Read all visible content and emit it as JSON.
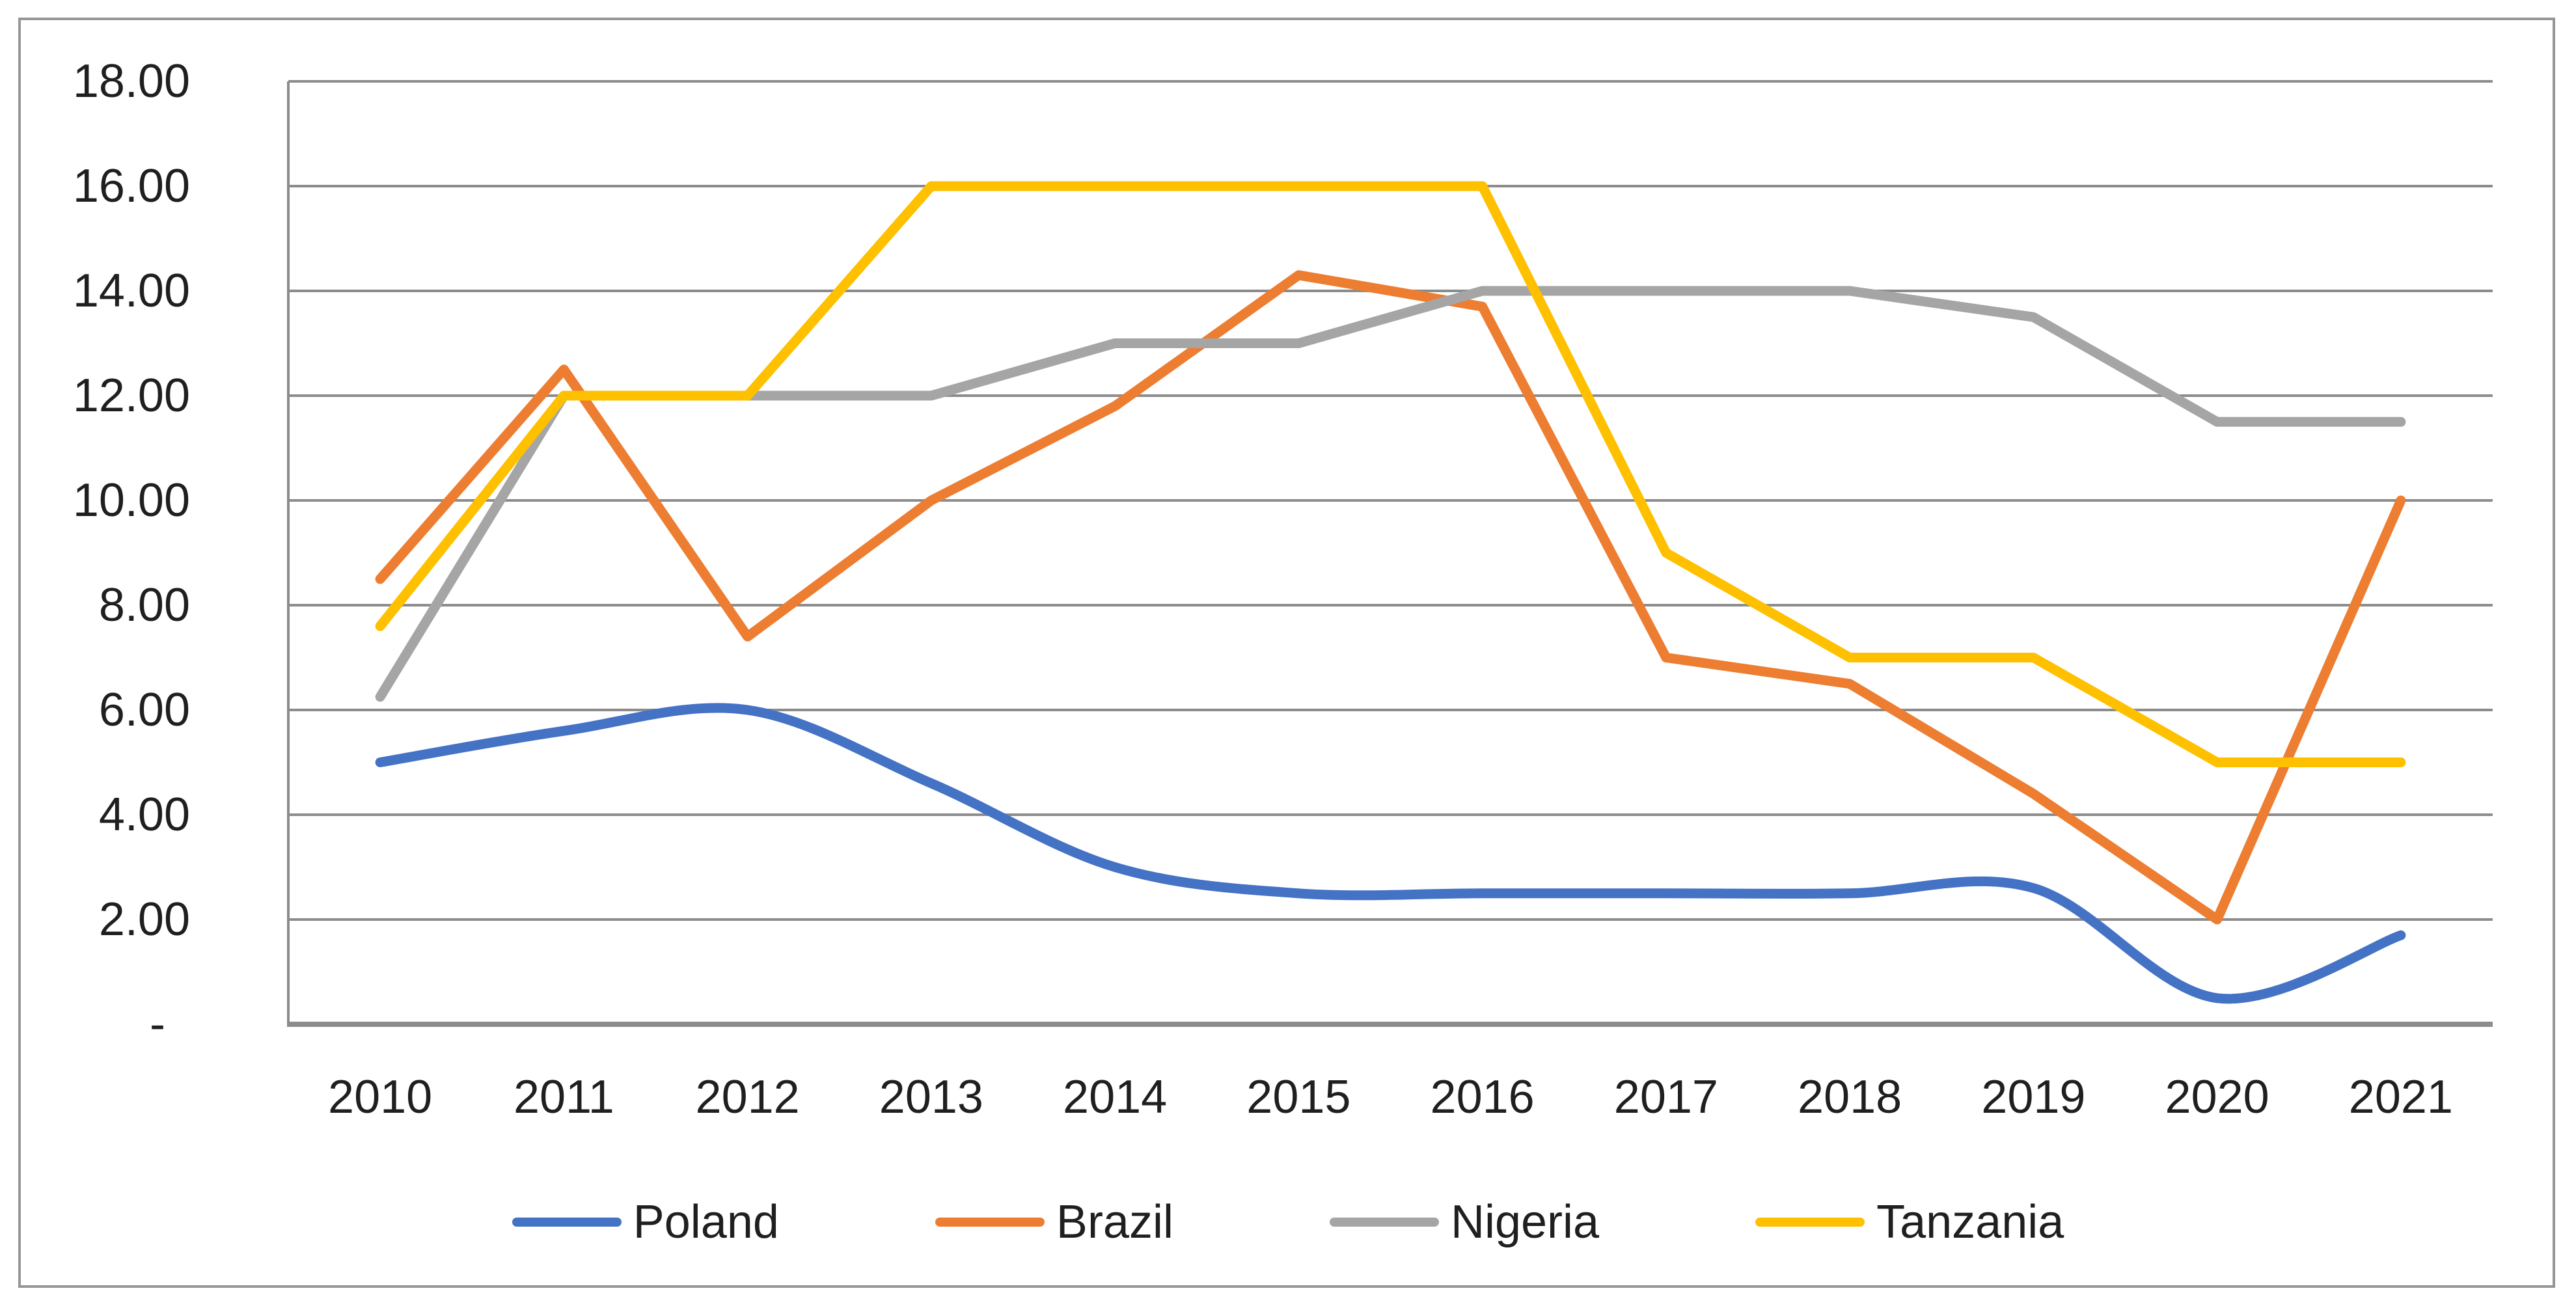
{
  "chart_data": {
    "type": "line",
    "title": "",
    "categories": [
      "2010",
      "2011",
      "2012",
      "2013",
      "2014",
      "2015",
      "2016",
      "2017",
      "2018",
      "2019",
      "2020",
      "2021"
    ],
    "series": [
      {
        "name": "Poland",
        "color": "#4472C4",
        "smooth": true,
        "values": [
          5.0,
          5.6,
          6.0,
          4.6,
          3.0,
          2.5,
          2.5,
          2.5,
          2.5,
          2.6,
          0.5,
          1.7
        ]
      },
      {
        "name": "Brazil",
        "color": "#ED7D31",
        "smooth": false,
        "values": [
          8.5,
          12.5,
          7.4,
          10.0,
          11.8,
          14.3,
          13.7,
          7.0,
          6.5,
          4.4,
          2.0,
          10.0
        ]
      },
      {
        "name": "Nigeria",
        "color": "#A5A5A5",
        "smooth": false,
        "values": [
          6.25,
          12.0,
          12.0,
          12.0,
          13.0,
          13.0,
          14.0,
          14.0,
          14.0,
          13.5,
          11.5,
          11.5
        ]
      },
      {
        "name": "Tanzania",
        "color": "#FFC000",
        "smooth": false,
        "values": [
          7.6,
          12.0,
          12.0,
          16.0,
          16.0,
          16.0,
          16.0,
          9.0,
          7.0,
          7.0,
          5.0,
          5.0
        ]
      }
    ],
    "xlabel": "",
    "ylabel": "",
    "y_axis": {
      "min": 0,
      "max": 18,
      "step": 2,
      "zero_label": "-",
      "tick_labels": [
        "-",
        "2.00",
        "4.00",
        "6.00",
        "8.00",
        "10.00",
        "12.00",
        "14.00",
        "16.00",
        "18.00"
      ]
    },
    "legend": {
      "position": "bottom",
      "entries": [
        "Poland",
        "Brazil",
        "Nigeria",
        "Tanzania"
      ]
    },
    "grid": {
      "on": true,
      "color": "#8c8c8c",
      "axis_color": "#8c8c8c",
      "frame_color": "#969696"
    }
  }
}
